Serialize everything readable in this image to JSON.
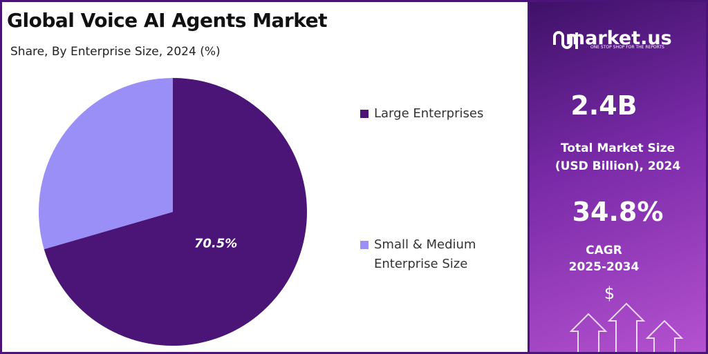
{
  "chart_data": {
    "type": "pie",
    "title": "Global Voice AI Agents Market",
    "subtitle": "Share, By Enterprise Size, 2024 (%)",
    "categories": [
      "Large Enterprises",
      "Small & Medium Enterprise Size"
    ],
    "values": [
      70.5,
      29.5
    ],
    "value_labels": [
      "70.5%",
      null
    ],
    "colors": [
      "#4a1577",
      "#9a8ff6"
    ],
    "start": "top",
    "direction": "clockwise"
  },
  "side_panel": {
    "brand": "market.us",
    "tagline": "ONE STOP SHOP FOR THE REPORTS",
    "market_size": "2.4B",
    "market_size_label": [
      "Total Market Size",
      "(USD Billion), 2024"
    ],
    "cagr": "34.8%",
    "cagr_label": "CAGR",
    "cagr_period": "2025-2034",
    "currency_icon": "$"
  }
}
